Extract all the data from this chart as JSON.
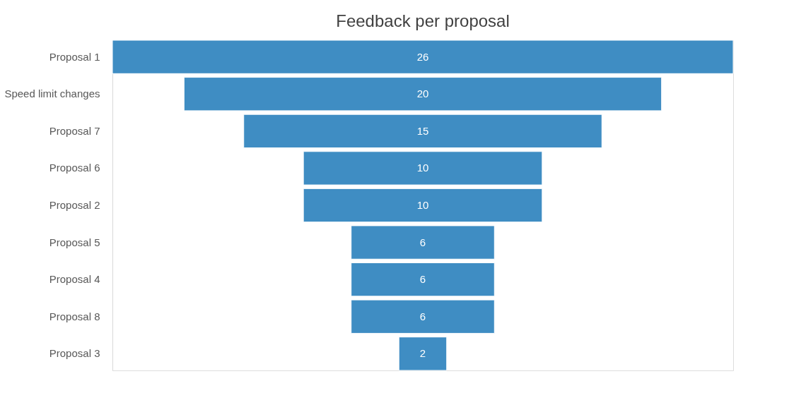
{
  "chart_data": {
    "type": "other",
    "title": "Feedback per proposal",
    "categories": [
      "Proposal 1",
      "Speed limit changes",
      "Proposal 7",
      "Proposal 6",
      "Proposal 2",
      "Proposal 5",
      "Proposal 4",
      "Proposal 8",
      "Proposal 3"
    ],
    "values": [
      26,
      20,
      15,
      10,
      10,
      6,
      6,
      6,
      2
    ],
    "color": "#3f8dc3",
    "data_labels": true
  }
}
